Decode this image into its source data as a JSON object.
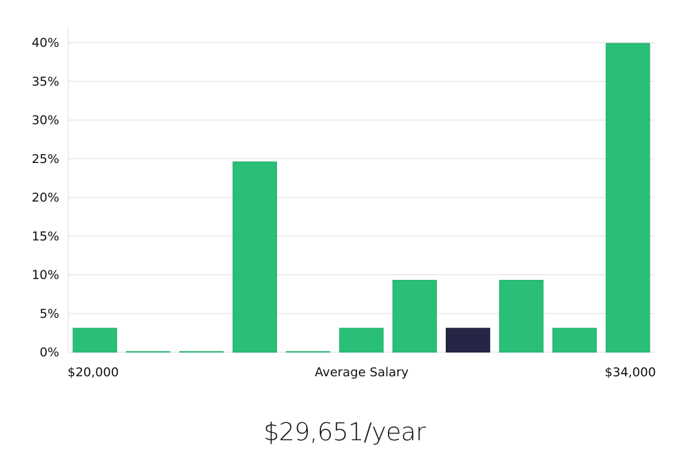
{
  "chart_data": {
    "type": "bar",
    "categories": [
      "1",
      "2",
      "3",
      "4",
      "5",
      "6",
      "7",
      "8",
      "9",
      "10",
      "11"
    ],
    "values": [
      3.1,
      0,
      0,
      24.6,
      0,
      3.1,
      9.3,
      3.1,
      9.3,
      3.1,
      39.9
    ],
    "highlight_index": 7,
    "ylim": [
      0,
      40
    ],
    "yticks": [
      "0%",
      "5%",
      "10%",
      "15%",
      "20%",
      "25%",
      "30%",
      "35%",
      "40%"
    ],
    "x_min_label": "$20,000",
    "x_max_label": "$34,000",
    "xlabel": "Average Salary",
    "grid": true,
    "colors": {
      "bar": "#2abf76",
      "highlight": "#262545",
      "grid": "#dddddd"
    }
  },
  "headline": "$29,651/year"
}
